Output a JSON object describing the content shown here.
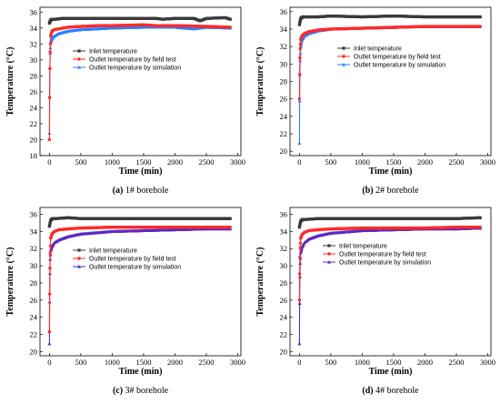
{
  "figure": {
    "colors": {
      "inlet": "#3a3a3a",
      "field": "#ff2a2a",
      "sim": "#2a7fff",
      "sim_dark": "#5b2ac0"
    }
  },
  "chart_data": [
    {
      "type": "line",
      "caption_label": "(a)",
      "caption_text": " 1# borehole",
      "xlabel": "Time (min)",
      "ylabel": "Temperature (°C)",
      "xlim": [
        -150,
        3050
      ],
      "ylim": [
        18,
        36.6
      ],
      "xticks": [
        0,
        500,
        1000,
        1500,
        2000,
        2500,
        3000
      ],
      "yticks": [
        18,
        20,
        22,
        24,
        26,
        28,
        30,
        32,
        34,
        36
      ],
      "grid": false,
      "legend_position": "center",
      "series": [
        {
          "name": "Inlet temperature",
          "color": "#3a3a3a",
          "marker": "square",
          "x": [
            0,
            20,
            50,
            100,
            200,
            500,
            1000,
            1500,
            1700,
            1800,
            2000,
            2300,
            2400,
            2500,
            2800,
            2880
          ],
          "y": [
            34.6,
            35.0,
            35.1,
            35.1,
            35.2,
            35.2,
            35.2,
            35.2,
            35.2,
            35.1,
            35.2,
            35.2,
            34.9,
            35.2,
            35.3,
            35.1
          ]
        },
        {
          "name": "Outlet temperature by field test",
          "color": "#ff2a2a",
          "marker": "circle",
          "x": [
            0,
            5,
            10,
            20,
            40,
            80,
            150,
            300,
            500,
            800,
            1000,
            1500,
            1700,
            2000,
            2500,
            2880
          ],
          "y": [
            20.0,
            26.6,
            30.5,
            33.0,
            33.6,
            33.8,
            33.9,
            34.1,
            34.2,
            34.3,
            34.3,
            34.4,
            34.3,
            34.3,
            34.2,
            34.1
          ]
        },
        {
          "name": "Outlet temperature by simulation",
          "color": "#2a7fff",
          "marker": "triangle",
          "x": [
            0,
            5,
            10,
            20,
            40,
            80,
            150,
            300,
            500,
            1000,
            1500,
            2000,
            2300,
            2500,
            2880
          ],
          "y": [
            20.8,
            26.6,
            30.5,
            32.2,
            32.7,
            33.0,
            33.3,
            33.6,
            33.8,
            34.0,
            34.1,
            34.1,
            33.9,
            34.1,
            34.0
          ]
        }
      ]
    },
    {
      "type": "line",
      "caption_label": "(b)",
      "caption_text": " 2# borehole",
      "xlabel": "Time (min)",
      "ylabel": "Temperature (°C)",
      "xlim": [
        -150,
        3050
      ],
      "ylim": [
        19.5,
        36.5
      ],
      "xticks": [
        0,
        500,
        1000,
        1500,
        2000,
        2500,
        3000
      ],
      "yticks": [
        20,
        22,
        24,
        26,
        28,
        30,
        32,
        34,
        36
      ],
      "grid": false,
      "legend_position": "top-right",
      "series": [
        {
          "name": "Inlet temperature",
          "color": "#3a3a3a",
          "marker": "square",
          "x": [
            0,
            20,
            50,
            100,
            300,
            500,
            1000,
            1500,
            2000,
            2500,
            2880
          ],
          "y": [
            34.5,
            35.2,
            35.4,
            35.4,
            35.4,
            35.5,
            35.4,
            35.5,
            35.4,
            35.4,
            35.4
          ]
        },
        {
          "name": "Outlet temperature by field test",
          "color": "#ff2a2a",
          "marker": "circle",
          "x": [
            0,
            5,
            10,
            20,
            40,
            80,
            150,
            300,
            500,
            1000,
            1500,
            2000,
            2500,
            2880
          ],
          "y": [
            26.0,
            29.5,
            31.5,
            32.8,
            33.2,
            33.5,
            33.7,
            33.9,
            34.0,
            34.1,
            34.2,
            34.3,
            34.3,
            34.3
          ]
        },
        {
          "name": "Outlet temperature by simulation",
          "color": "#2a7fff",
          "marker": "triangle",
          "x": [
            0,
            5,
            10,
            20,
            40,
            80,
            150,
            300,
            500,
            1000,
            1500,
            2000,
            2500,
            2880
          ],
          "y": [
            20.9,
            27.0,
            30.0,
            32.0,
            32.8,
            33.2,
            33.5,
            33.8,
            34.0,
            34.1,
            34.2,
            34.3,
            34.3,
            34.3
          ]
        }
      ]
    },
    {
      "type": "line",
      "caption_label": "(c)",
      "caption_text": " 3# borehole",
      "xlabel": "Time (min)",
      "ylabel": "Temperature (°C)",
      "xlim": [
        -150,
        3050
      ],
      "ylim": [
        19.5,
        36.8
      ],
      "xticks": [
        0,
        500,
        1000,
        1500,
        2000,
        2500,
        3000
      ],
      "yticks": [
        20,
        22,
        24,
        26,
        28,
        30,
        32,
        34,
        36
      ],
      "grid": false,
      "legend_position": "center",
      "series": [
        {
          "name": "Inlet temperature",
          "color": "#3a3a3a",
          "marker": "square",
          "x": [
            0,
            20,
            50,
            100,
            300,
            500,
            1000,
            1500,
            2000,
            2500,
            2880
          ],
          "y": [
            34.6,
            35.3,
            35.5,
            35.5,
            35.6,
            35.5,
            35.5,
            35.5,
            35.5,
            35.5,
            35.5
          ]
        },
        {
          "name": "Outlet temperature by field test",
          "color": "#ff2a2a",
          "marker": "circle",
          "x": [
            0,
            5,
            10,
            20,
            40,
            80,
            150,
            300,
            500,
            1000,
            1500,
            2000,
            2500,
            2880
          ],
          "y": [
            22.3,
            27.8,
            31.0,
            33.2,
            33.7,
            34.0,
            34.2,
            34.3,
            34.4,
            34.5,
            34.5,
            34.5,
            34.5,
            34.5
          ]
        },
        {
          "name": "Outlet temperature by simulation",
          "color": "#5b2ac0",
          "marker": "triangle",
          "x": [
            0,
            5,
            10,
            20,
            40,
            80,
            150,
            300,
            500,
            1000,
            1500,
            2000,
            2500,
            2880
          ],
          "y": [
            20.9,
            27.0,
            30.5,
            31.8,
            32.3,
            32.7,
            33.0,
            33.4,
            33.7,
            34.0,
            34.1,
            34.2,
            34.3,
            34.3
          ]
        }
      ]
    },
    {
      "type": "line",
      "caption_label": "(d)",
      "caption_text": " 4# borehole",
      "xlabel": "Time (min)",
      "ylabel": "Temperature (°C)",
      "xlim": [
        -150,
        3050
      ],
      "ylim": [
        19.5,
        36.8
      ],
      "xticks": [
        0,
        500,
        1000,
        1500,
        2000,
        2500,
        3000
      ],
      "yticks": [
        20,
        22,
        24,
        26,
        28,
        30,
        32,
        34,
        36
      ],
      "grid": false,
      "legend_position": "center",
      "series": [
        {
          "name": "Inlet temperature",
          "color": "#3a3a3a",
          "marker": "square",
          "x": [
            0,
            20,
            50,
            100,
            300,
            500,
            1000,
            1500,
            2000,
            2500,
            2880
          ],
          "y": [
            34.5,
            35.2,
            35.4,
            35.4,
            35.5,
            35.5,
            35.5,
            35.5,
            35.5,
            35.5,
            35.6
          ]
        },
        {
          "name": "Outlet temperature by field test",
          "color": "#ff2a2a",
          "marker": "circle",
          "x": [
            0,
            5,
            10,
            20,
            40,
            80,
            150,
            300,
            500,
            1000,
            1500,
            2000,
            2500,
            2880
          ],
          "y": [
            26.0,
            29.8,
            31.8,
            33.2,
            33.6,
            33.9,
            34.1,
            34.2,
            34.3,
            34.4,
            34.4,
            34.4,
            34.5,
            34.5
          ]
        },
        {
          "name": "Outlet temperature by simulation",
          "color": "#5b2ac0",
          "marker": "triangle",
          "x": [
            0,
            5,
            10,
            20,
            40,
            80,
            150,
            300,
            500,
            1000,
            1500,
            2000,
            2500,
            2880
          ],
          "y": [
            20.9,
            26.8,
            30.0,
            31.5,
            32.2,
            32.7,
            33.1,
            33.5,
            33.8,
            34.1,
            34.2,
            34.3,
            34.3,
            34.4
          ]
        }
      ]
    }
  ]
}
